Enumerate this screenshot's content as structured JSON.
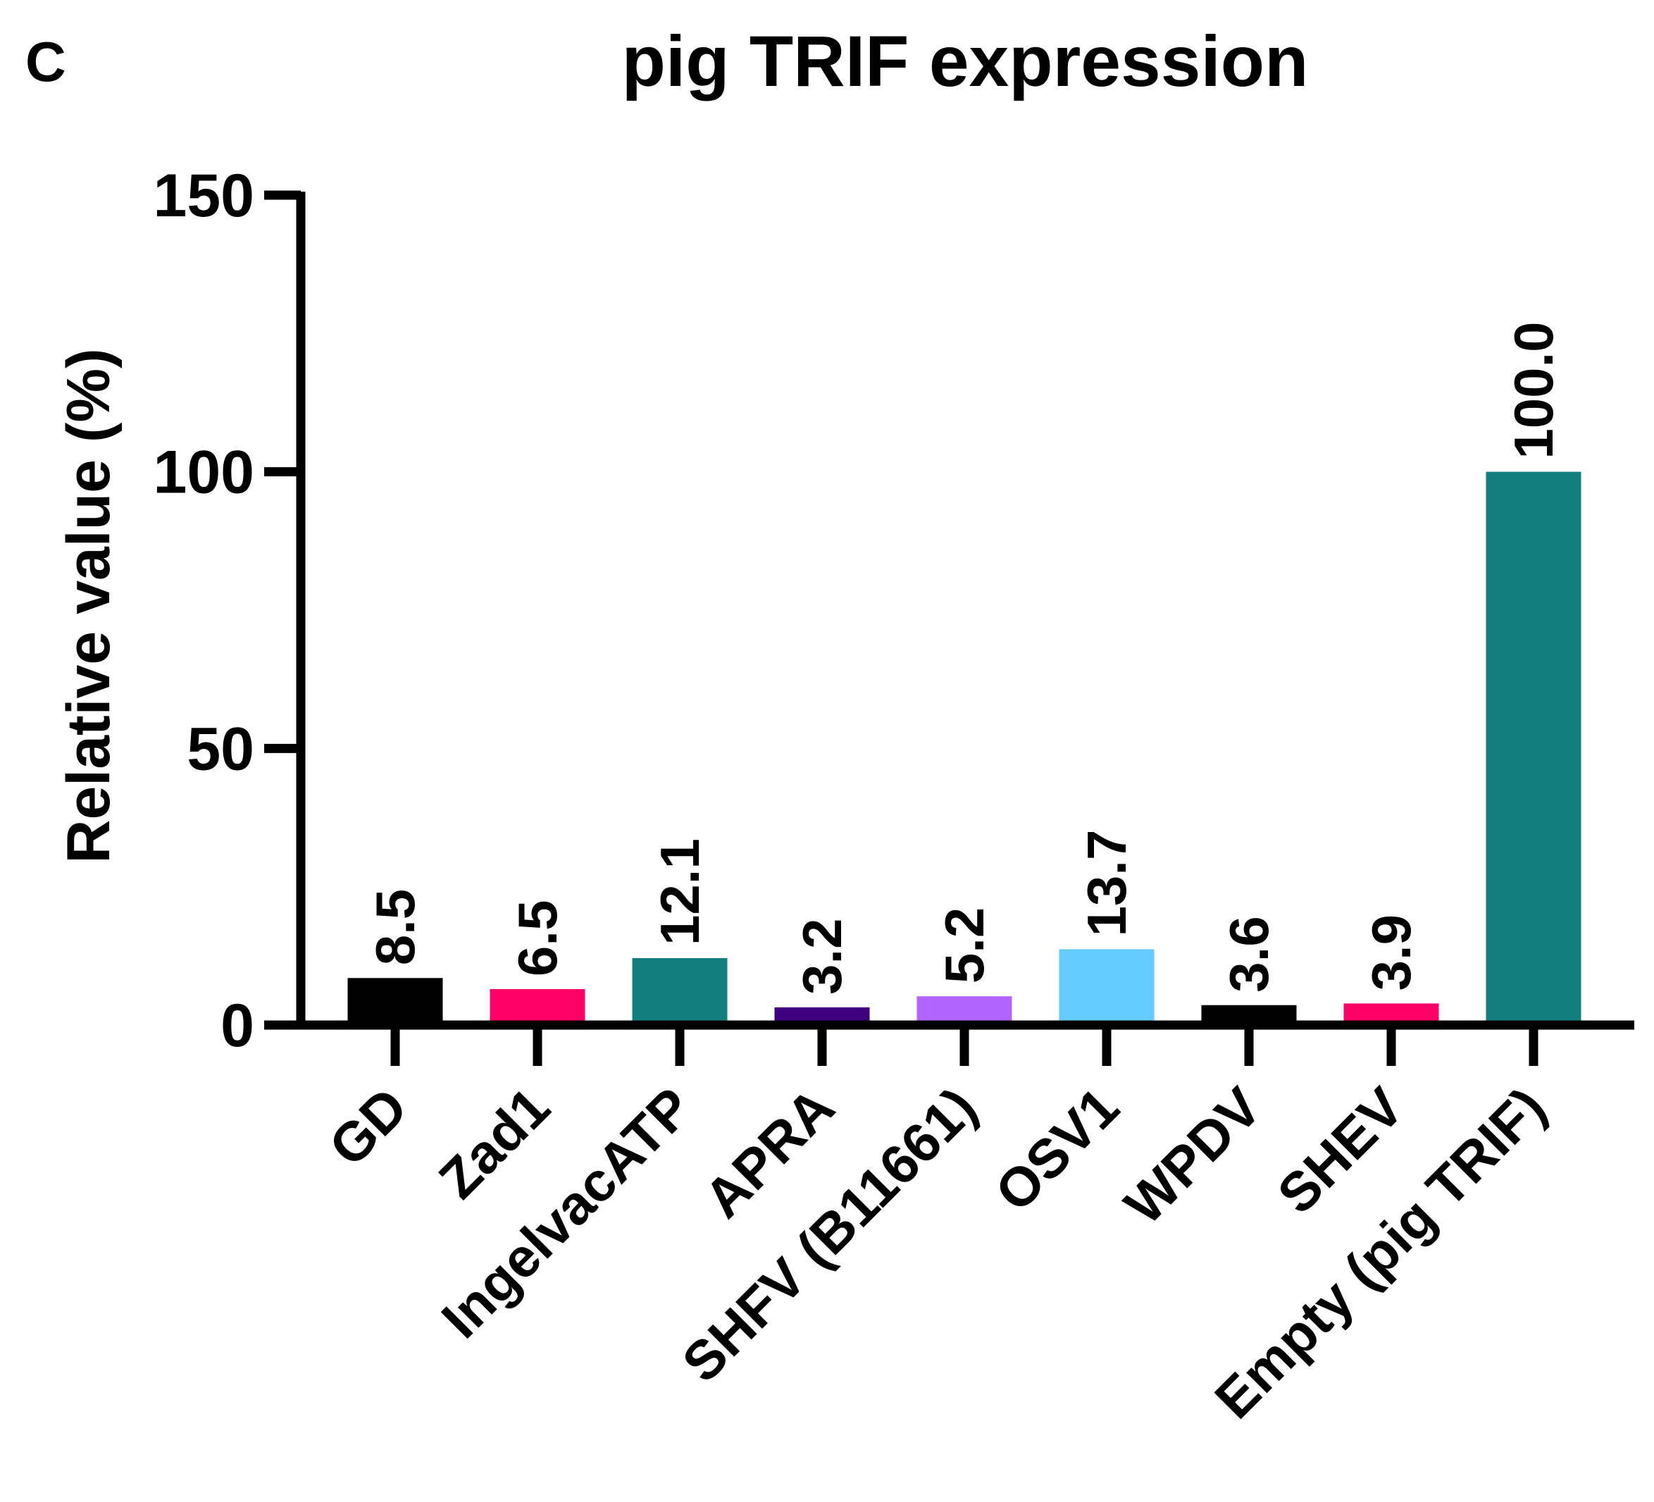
{
  "panel_label": "C",
  "chart_data": {
    "type": "bar",
    "title": "pig TRIF expression",
    "xlabel": "",
    "ylabel": "Relative value (%)",
    "ylim": [
      0,
      150
    ],
    "yticks": [
      "0",
      "50",
      "100",
      "150"
    ],
    "grid": false,
    "categories": [
      "GD",
      "Zad1",
      "IngelvacATP",
      "APRA",
      "SHFV (B11661)",
      "OSV1",
      "WPDV",
      "SHEV",
      "Empty (pig TRIF)"
    ],
    "values": [
      8.5,
      6.5,
      12.1,
      3.2,
      5.2,
      13.7,
      3.6,
      3.9,
      100.0
    ],
    "value_labels": [
      "8.5",
      "6.5",
      "12.1",
      "3.2",
      "5.2",
      "13.7",
      "3.6",
      "3.9",
      "100.0"
    ],
    "colors": [
      "#000000",
      "#ff0066",
      "#137f7f",
      "#3f007f",
      "#b266ff",
      "#66ccff",
      "#000000",
      "#ff0066",
      "#137f7f"
    ]
  }
}
